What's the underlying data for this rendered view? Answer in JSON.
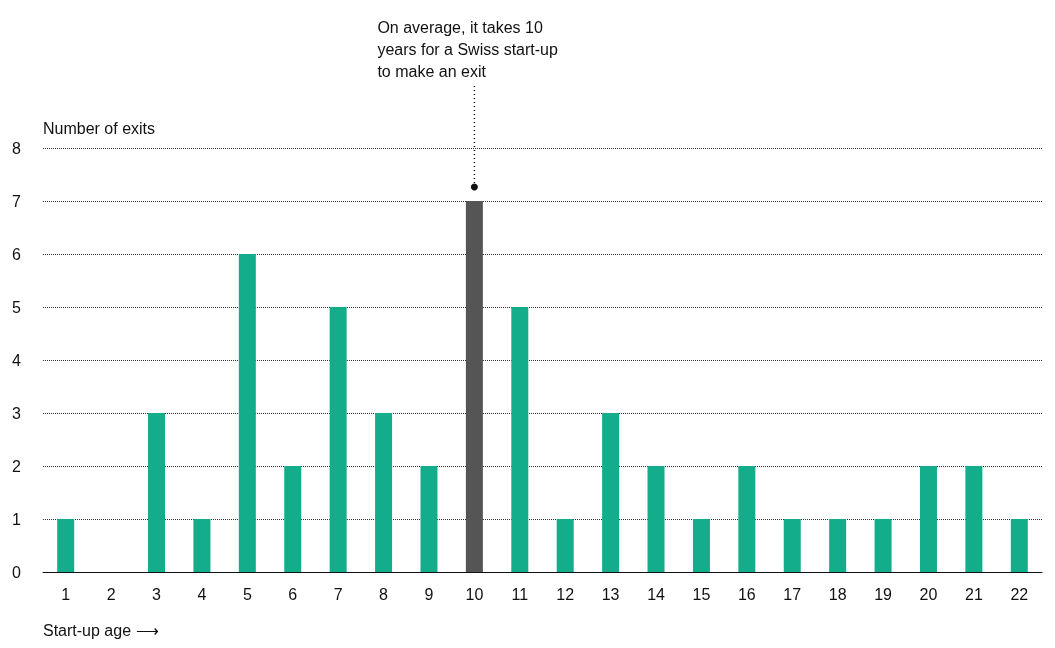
{
  "chart_data": {
    "type": "bar",
    "xlabel": "Start-up age ⟶",
    "ylabel": "Number of exits",
    "categories": [
      "1",
      "2",
      "3",
      "4",
      "5",
      "6",
      "7",
      "8",
      "9",
      "10",
      "11",
      "12",
      "13",
      "14",
      "15",
      "16",
      "17",
      "18",
      "19",
      "20",
      "21",
      "22"
    ],
    "values": [
      1,
      0,
      3,
      1,
      6,
      2,
      5,
      3,
      2,
      7,
      5,
      1,
      3,
      2,
      1,
      2,
      1,
      1,
      1,
      2,
      2,
      1
    ],
    "colors": [
      "#14ad8c",
      "#14ad8c",
      "#14ad8c",
      "#14ad8c",
      "#14ad8c",
      "#14ad8c",
      "#14ad8c",
      "#14ad8c",
      "#14ad8c",
      "#555555",
      "#14ad8c",
      "#14ad8c",
      "#14ad8c",
      "#14ad8c",
      "#14ad8c",
      "#14ad8c",
      "#14ad8c",
      "#14ad8c",
      "#14ad8c",
      "#14ad8c",
      "#14ad8c",
      "#14ad8c"
    ],
    "ylim": [
      0,
      8
    ],
    "yticks": [
      0,
      1,
      2,
      3,
      4,
      5,
      6,
      7,
      8
    ],
    "grid": "y",
    "annotations": [
      "On average, it takes 10\nyears for a Swiss start-up\nto make an exit"
    ]
  }
}
